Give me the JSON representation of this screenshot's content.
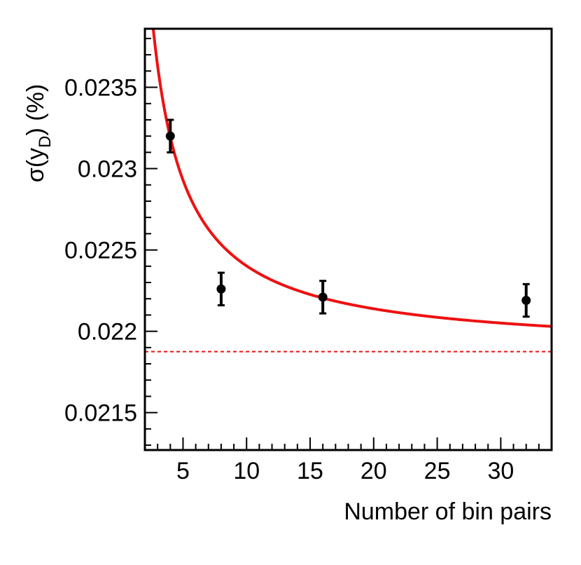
{
  "chart_data": {
    "type": "scatter",
    "xlabel": "Number of bin pairs",
    "ylabel": {
      "prefix": "σ(y",
      "subscript": "D",
      "suffix": ") (%)"
    },
    "xlim": [
      2,
      34
    ],
    "ylim": [
      0.02127,
      0.02386
    ],
    "x_ticks": [
      {
        "value": 5,
        "label": "5"
      },
      {
        "value": 10,
        "label": "10"
      },
      {
        "value": 15,
        "label": "15"
      },
      {
        "value": 20,
        "label": "20"
      },
      {
        "value": 25,
        "label": "25"
      },
      {
        "value": 30,
        "label": "30"
      }
    ],
    "y_ticks": [
      {
        "value": 0.0215,
        "label": "0.0215"
      },
      {
        "value": 0.022,
        "label": "0.022"
      },
      {
        "value": 0.0225,
        "label": "0.0225"
      },
      {
        "value": 0.023,
        "label": "0.023"
      },
      {
        "value": 0.0235,
        "label": "0.0235"
      }
    ],
    "points": [
      {
        "x": 4,
        "y": 0.0232,
        "err": 0.0001
      },
      {
        "x": 8,
        "y": 0.02226,
        "err": 0.0001
      },
      {
        "x": 16,
        "y": 0.02221,
        "err": 0.0001
      },
      {
        "x": 32,
        "y": 0.02219,
        "err": 0.0001
      }
    ],
    "fit": {
      "form": "a + b / x",
      "a": 0.021875,
      "b": 0.00527,
      "color": "#ee1111"
    },
    "asymptote": {
      "y": 0.021875,
      "style": "dashed",
      "color": "#ee1111"
    },
    "marker_color": "#000000",
    "grid": false,
    "legend": "none"
  }
}
